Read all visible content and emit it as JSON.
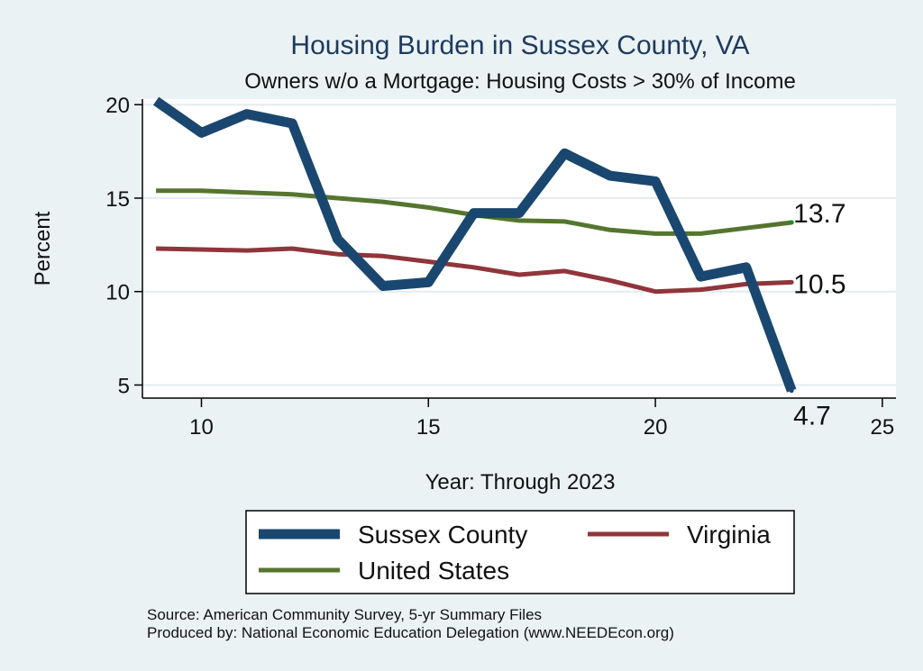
{
  "chart_data": {
    "type": "line",
    "title": "Housing Burden in Sussex County, VA",
    "subtitle": "Owners w/o a Mortgage: Housing Costs > 30% of Income",
    "xlabel": "Year: Through 2023",
    "ylabel": "Percent",
    "xlim": [
      8.7,
      25.3
    ],
    "ylim": [
      4.3,
      20.3
    ],
    "xticks": [
      10,
      15,
      20,
      25
    ],
    "yticks": [
      5,
      10,
      15,
      20
    ],
    "grid": true,
    "legend_position": "bottom",
    "x": [
      9,
      10,
      11,
      12,
      13,
      14,
      15,
      16,
      17,
      18,
      19,
      20,
      21,
      22,
      23
    ],
    "series": [
      {
        "name": "Sussex County",
        "color": "#1a476f",
        "values": [
          20.2,
          18.5,
          19.5,
          19.0,
          12.8,
          10.3,
          10.5,
          14.2,
          14.2,
          17.4,
          16.2,
          15.9,
          10.8,
          11.3,
          4.7
        ],
        "end_label": "4.7"
      },
      {
        "name": "Virginia",
        "color": "#90353b",
        "values": [
          12.3,
          12.25,
          12.2,
          12.3,
          12.0,
          11.9,
          11.6,
          11.3,
          10.9,
          11.1,
          10.6,
          10.0,
          10.1,
          10.4,
          10.5
        ],
        "end_label": "10.5"
      },
      {
        "name": "United States",
        "color": "#55752f",
        "values": [
          15.4,
          15.4,
          15.3,
          15.2,
          15.0,
          14.8,
          14.5,
          14.1,
          13.8,
          13.75,
          13.3,
          13.1,
          13.1,
          13.4,
          13.7
        ],
        "end_label": "13.7"
      }
    ]
  },
  "footer": {
    "source": "Source: American Community Survey, 5-yr Summary Files",
    "produced_by": "Produced by: National Economic Education Delegation (www.NEEDEcon.org)"
  }
}
